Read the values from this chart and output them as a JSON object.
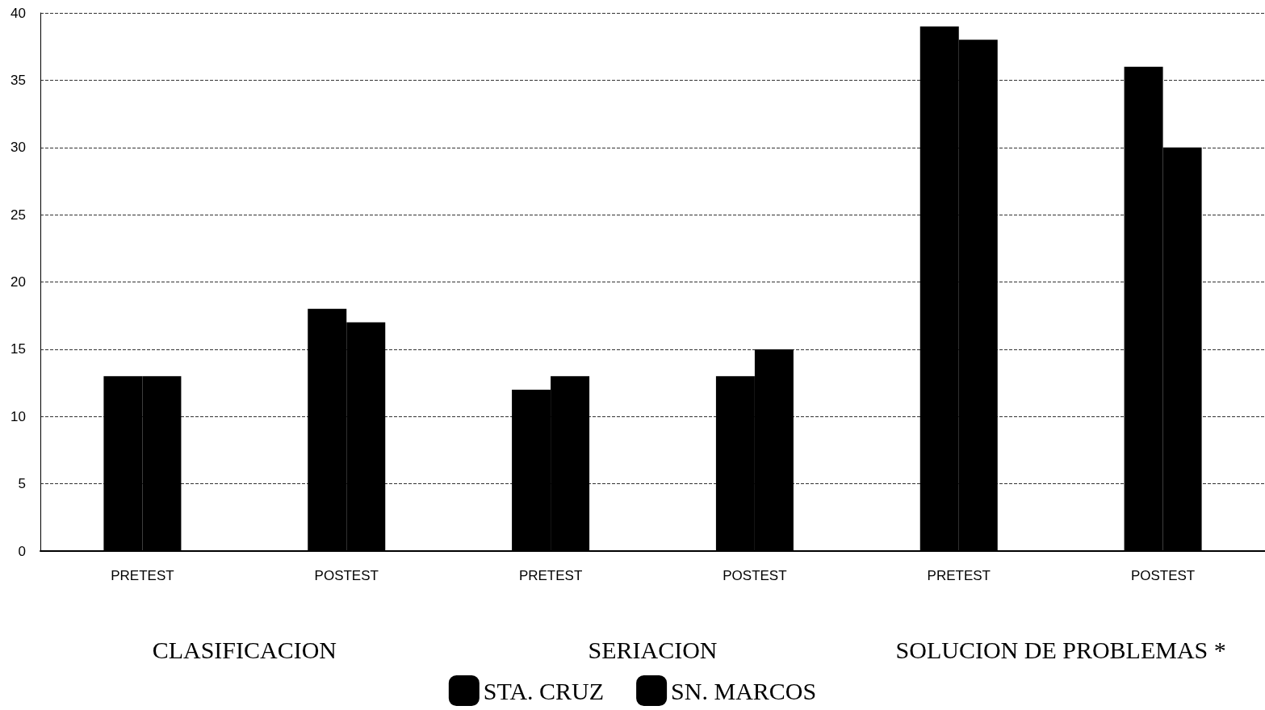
{
  "chart_data": {
    "type": "bar",
    "categories": [
      "PRETEST",
      "POSTEST",
      "PRETEST",
      "POSTEST",
      "PRETEST",
      "POSTEST"
    ],
    "series": [
      {
        "name": "STA. CRUZ",
        "color": "#000000",
        "values": [
          13,
          18,
          12,
          13,
          39,
          36
        ]
      },
      {
        "name": "SN. MARCOS",
        "color": "#000000",
        "values": [
          13,
          17,
          13,
          15,
          38,
          30
        ]
      }
    ],
    "ylim": [
      0,
      40
    ],
    "yticks": [
      0,
      5,
      10,
      15,
      20,
      25,
      30,
      35,
      40
    ],
    "grid": "y",
    "legend": "bottom",
    "annotations": [
      "CLASIFICACION",
      "SERIACION",
      "SOLUCION DE PROBLEMAS *"
    ]
  }
}
